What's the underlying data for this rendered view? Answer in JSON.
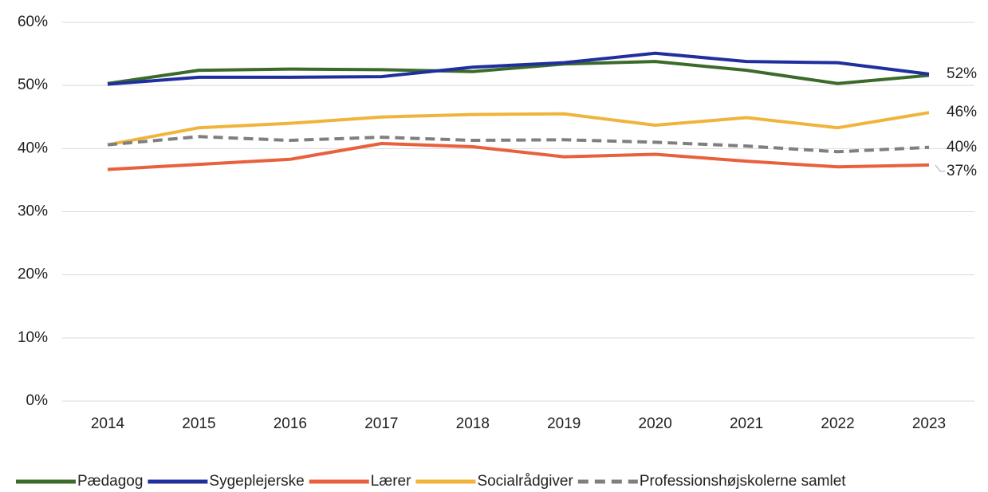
{
  "chart_data": {
    "type": "line",
    "categories": [
      "2014",
      "2015",
      "2016",
      "2017",
      "2018",
      "2019",
      "2020",
      "2021",
      "2022",
      "2023"
    ],
    "series": [
      {
        "name": "Pædagog",
        "color": "#3a6b2a",
        "values": [
          50.3,
          52.4,
          52.6,
          52.5,
          52.2,
          53.4,
          53.8,
          52.4,
          50.3,
          51.6
        ]
      },
      {
        "name": "Sygeplejerske",
        "color": "#1f2f9e",
        "values": [
          50.2,
          51.3,
          51.3,
          51.4,
          52.9,
          53.6,
          55.1,
          53.8,
          53.6,
          51.8
        ],
        "value_labels": [
          null,
          null,
          null,
          null,
          null,
          null,
          null,
          null,
          null,
          "52%"
        ]
      },
      {
        "name": "Lærer",
        "color": "#e8603c",
        "values": [
          36.7,
          37.5,
          38.3,
          40.8,
          40.3,
          38.7,
          39.1,
          38.0,
          37.1,
          37.4
        ],
        "value_labels": [
          null,
          null,
          null,
          null,
          null,
          null,
          null,
          null,
          null,
          "37%"
        ]
      },
      {
        "name": "Socialrådgiver",
        "color": "#f0b43c",
        "values": [
          40.6,
          43.3,
          44.0,
          45.0,
          45.4,
          45.5,
          43.7,
          44.9,
          43.3,
          45.7
        ],
        "value_labels": [
          null,
          null,
          null,
          null,
          null,
          null,
          null,
          null,
          null,
          "46%"
        ]
      },
      {
        "name": "Professionshøjskolerne samlet",
        "color": "#7f7f7f",
        "dashed": true,
        "values": [
          40.6,
          41.9,
          41.3,
          41.8,
          41.3,
          41.4,
          41.0,
          40.4,
          39.5,
          40.2
        ],
        "value_labels": [
          null,
          null,
          null,
          null,
          null,
          null,
          null,
          null,
          null,
          "40%"
        ]
      }
    ],
    "ylim": [
      0,
      60
    ],
    "yticks": [
      {
        "value": 0,
        "label": "0%"
      },
      {
        "value": 10,
        "label": "10%"
      },
      {
        "value": 20,
        "label": "20%"
      },
      {
        "value": 30,
        "label": "30%"
      },
      {
        "value": 40,
        "label": "40%"
      },
      {
        "value": 50,
        "label": "50%"
      },
      {
        "value": 60,
        "label": "60%"
      }
    ],
    "grid": true
  }
}
